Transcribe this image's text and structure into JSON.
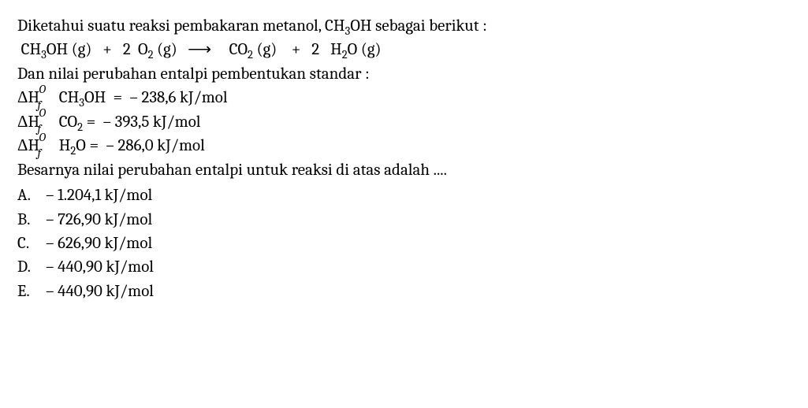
{
  "intro": "Diketahui suatu reaksi pembakaran metanol, CH₃OH sebagai berikut :",
  "equation": {
    "r1": "CH₃OH (g)",
    "plus1": "+",
    "r2c": "2",
    "r2": "O₂ (g)",
    "arrow": "⟶",
    "p1": "CO₂ (g)",
    "plus2": "+",
    "p2c": "2",
    "p2": "H₂O (g)"
  },
  "line3": "Dan nilai perubahan entalpi pembentukan standar :",
  "hf1": {
    "species": "CH₃OH",
    "eq": "=",
    "val": "– 238,6 kJ/mol"
  },
  "hf2": {
    "species": "CO₂",
    "eq": "=",
    "val": "– 393,5 kJ/mol"
  },
  "hf3": {
    "species": "H₂O",
    "eq": "=",
    "val": "– 286,0 kJ/mol"
  },
  "question": "Besarnya nilai perubahan entalpi untuk reaksi di atas adalah ....",
  "options": {
    "A": {
      "letter": "A.",
      "text": "– 1.204,1 kJ/mol"
    },
    "B": {
      "letter": "B.",
      "text": "– 726,90 kJ/mol"
    },
    "C": {
      "letter": "C.",
      "text": "– 626,90 kJ/mol"
    },
    "D": {
      "letter": "D.",
      "text": "– 440,90 kJ/mol"
    },
    "E": {
      "letter": "E.",
      "text": "– 440,90 kJ/mol"
    }
  },
  "style": {
    "font_family": "Cambria / serif",
    "font_size_pt": 16,
    "text_color": "#000000",
    "background_color": "#ffffff",
    "line_height": 1.45
  }
}
